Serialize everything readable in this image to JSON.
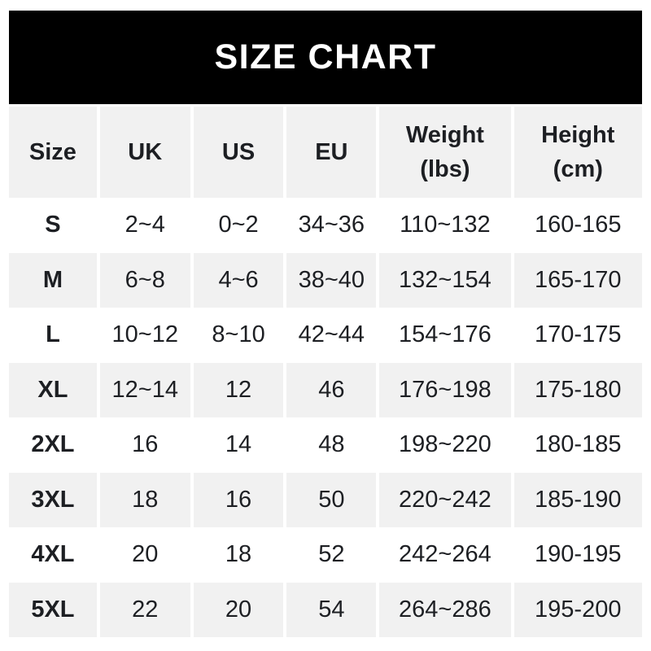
{
  "title_banner": {
    "label": "SIZE CHART"
  },
  "colors": {
    "banner_bg": "#000000",
    "banner_text": "#ffffff",
    "stripe_bg": "#f1f1f1",
    "text": "#1d1f23",
    "page_bg": "#ffffff"
  },
  "table": {
    "headers": [
      {
        "label": "Size"
      },
      {
        "label": "UK"
      },
      {
        "label": "US"
      },
      {
        "label": "EU"
      },
      {
        "label": "Weight",
        "sub": "(lbs)"
      },
      {
        "label": "Height",
        "sub": "(cm)"
      }
    ],
    "rows": [
      [
        "S",
        "2~4",
        "0~2",
        "34~36",
        "110~132",
        "160-165"
      ],
      [
        "M",
        "6~8",
        "4~6",
        "38~40",
        "132~154",
        "165-170"
      ],
      [
        "L",
        "10~12",
        "8~10",
        "42~44",
        "154~176",
        "170-175"
      ],
      [
        "XL",
        "12~14",
        "12",
        "46",
        "176~198",
        "175-180"
      ],
      [
        "2XL",
        "16",
        "14",
        "48",
        "198~220",
        "180-185"
      ],
      [
        "3XL",
        "18",
        "16",
        "50",
        "220~242",
        "185-190"
      ],
      [
        "4XL",
        "20",
        "18",
        "52",
        "242~264",
        "190-195"
      ],
      [
        "5XL",
        "22",
        "20",
        "54",
        "264~286",
        "195-200"
      ]
    ]
  },
  "chart_data": {
    "type": "table",
    "title": "SIZE CHART",
    "columns": [
      "Size",
      "UK",
      "US",
      "EU",
      "Weight (lbs)",
      "Height (cm)"
    ],
    "rows": [
      [
        "S",
        "2~4",
        "0~2",
        "34~36",
        "110~132",
        "160-165"
      ],
      [
        "M",
        "6~8",
        "4~6",
        "38~40",
        "132~154",
        "165-170"
      ],
      [
        "L",
        "10~12",
        "8~10",
        "42~44",
        "154~176",
        "170-175"
      ],
      [
        "XL",
        "12~14",
        "12",
        "46",
        "176~198",
        "175-180"
      ],
      [
        "2XL",
        "16",
        "14",
        "48",
        "198~220",
        "180-185"
      ],
      [
        "3XL",
        "18",
        "16",
        "50",
        "220~242",
        "185-190"
      ],
      [
        "4XL",
        "20",
        "18",
        "52",
        "242~264",
        "190-195"
      ],
      [
        "5XL",
        "22",
        "20",
        "54",
        "264~286",
        "195-200"
      ]
    ],
    "layout": {
      "striped_rows": true,
      "stripe_pattern": "header gray, then alternating white/gray starting at S",
      "weight_separator": "~",
      "height_separator": "-"
    }
  }
}
